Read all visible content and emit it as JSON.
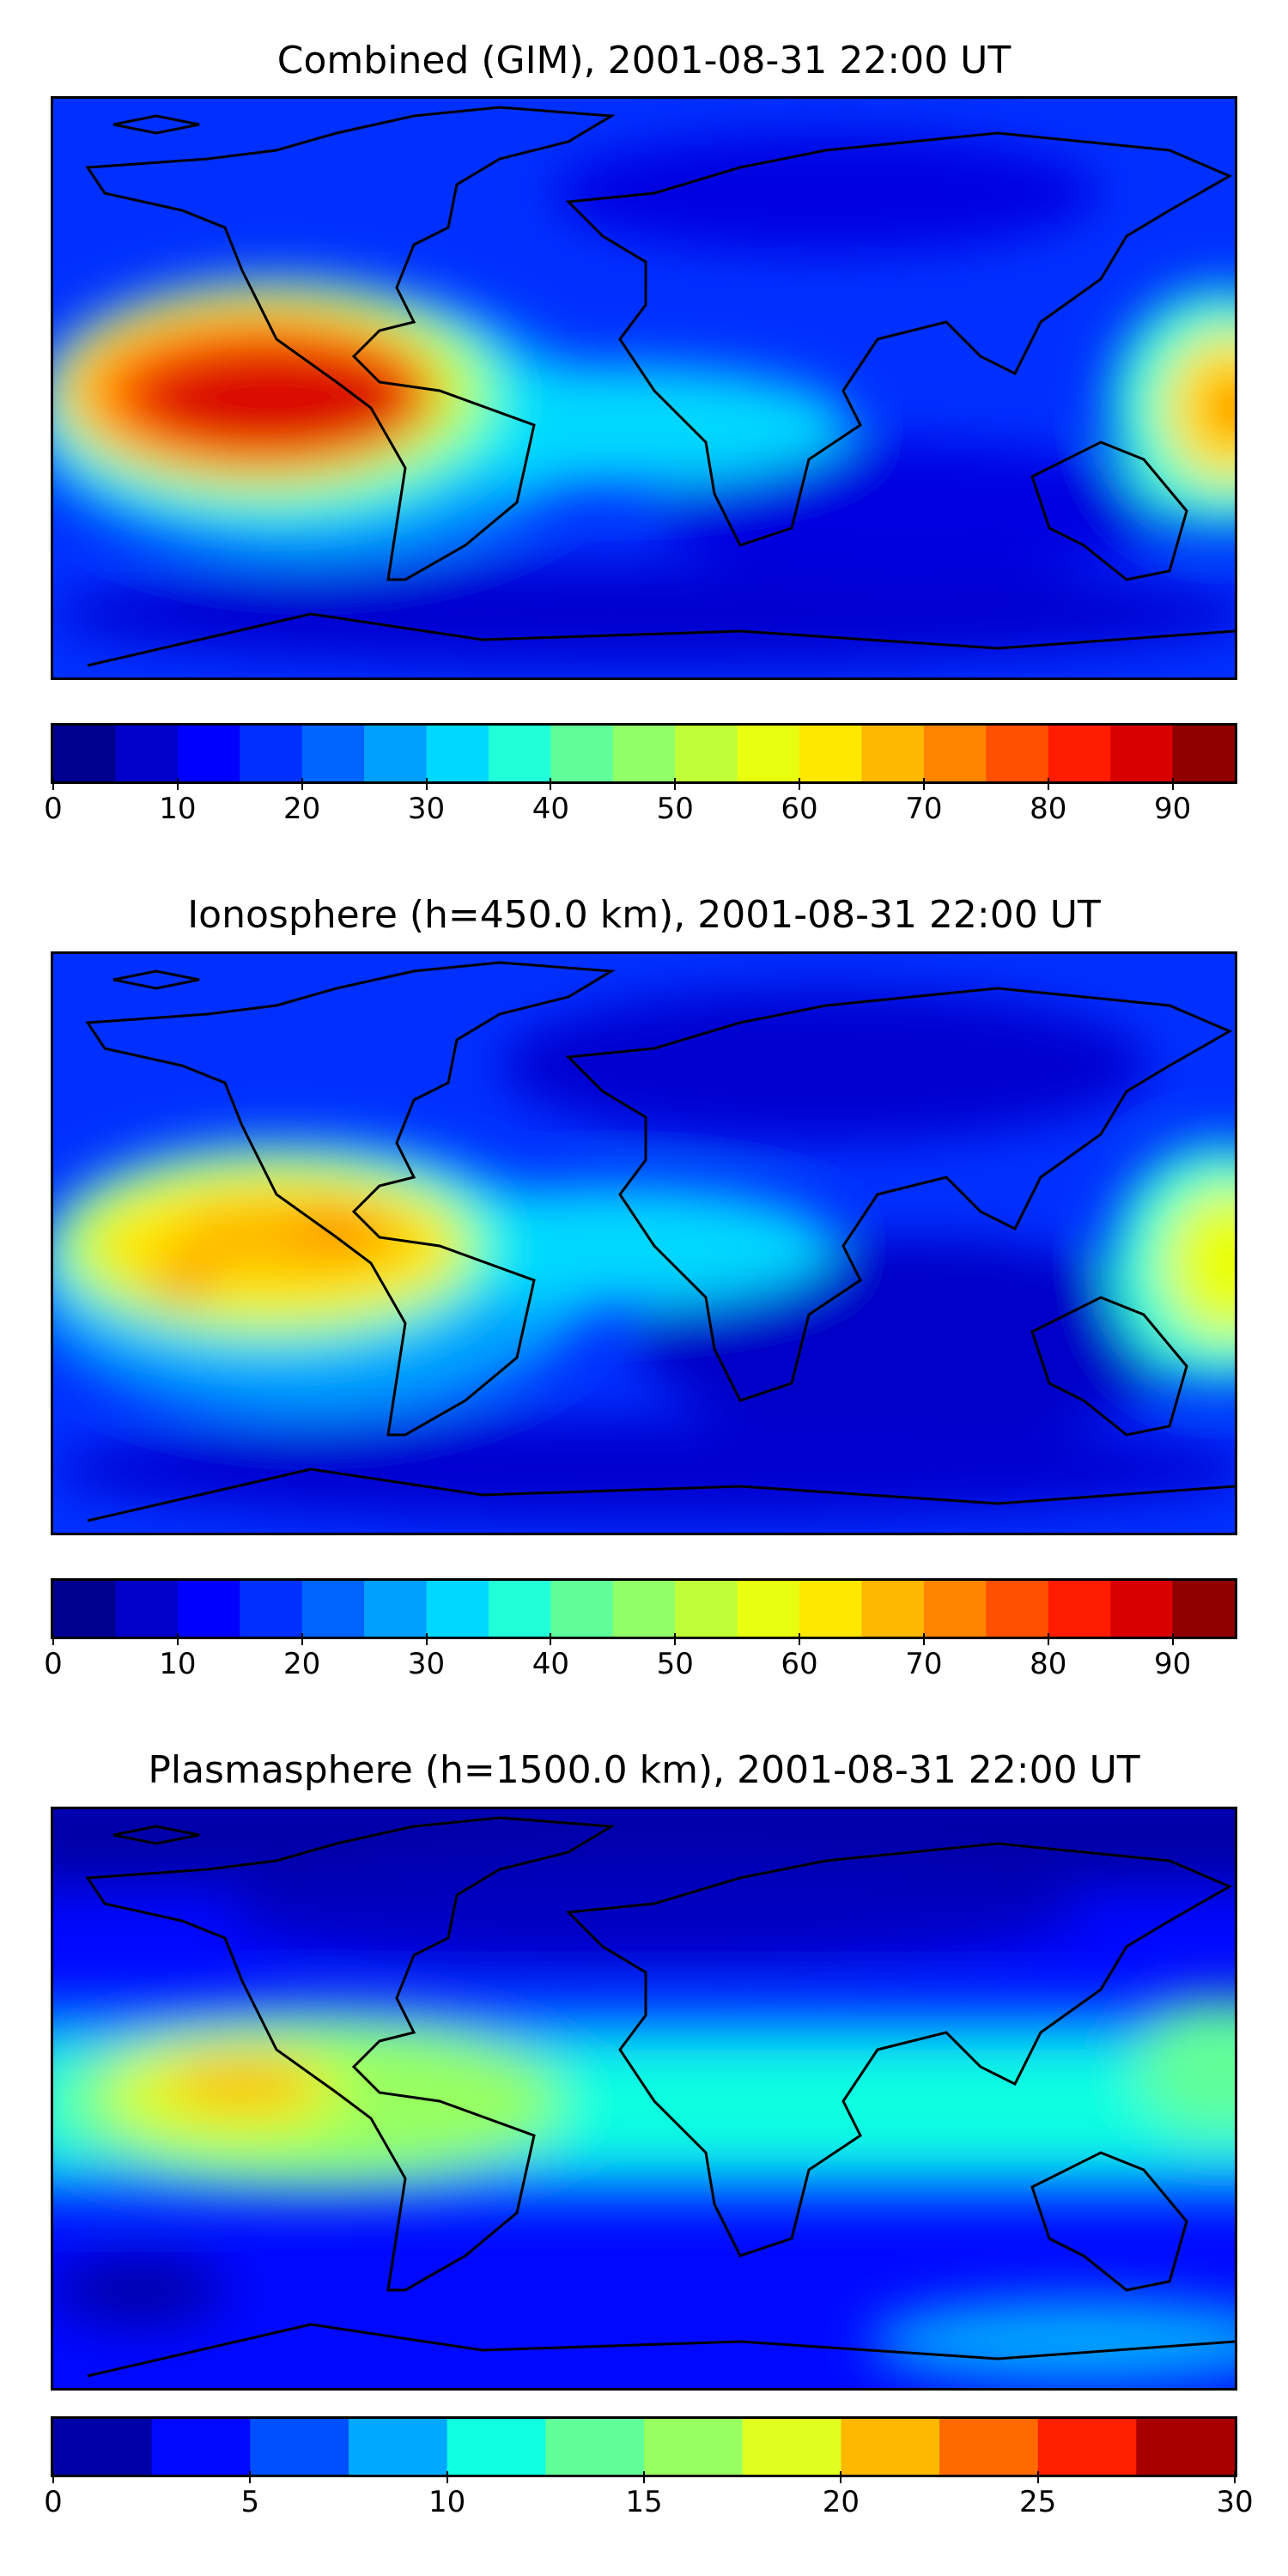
{
  "panels": [
    {
      "title": "Combined (GIM), 2001-08-31 22:00 UT",
      "colorbar": {
        "colors": [
          "#00008f",
          "#0000c8",
          "#0000ff",
          "#0030ff",
          "#0064ff",
          "#00a0ff",
          "#00d8ff",
          "#20ffd8",
          "#60ff9a",
          "#90ff68",
          "#c0ff38",
          "#e8ff10",
          "#ffe800",
          "#ffb800",
          "#ff8400",
          "#ff5000",
          "#ff1c00",
          "#d80000",
          "#900000"
        ],
        "ticks": [
          "0",
          "10",
          "20",
          "30",
          "40",
          "50",
          "60",
          "70",
          "80",
          "90"
        ],
        "tick_values": [
          0,
          10,
          20,
          30,
          40,
          50,
          60,
          70,
          80,
          90
        ],
        "vmin": 0,
        "vmax": 95
      }
    },
    {
      "title": "Ionosphere  (h=450.0 km), 2001-08-31 22:00 UT",
      "colorbar": {
        "colors": [
          "#00008f",
          "#0000c8",
          "#0000ff",
          "#0030ff",
          "#0064ff",
          "#00a0ff",
          "#00d8ff",
          "#20ffd8",
          "#60ff9a",
          "#90ff68",
          "#c0ff38",
          "#e8ff10",
          "#ffe800",
          "#ffb800",
          "#ff8400",
          "#ff5000",
          "#ff1c00",
          "#d80000",
          "#900000"
        ],
        "ticks": [
          "0",
          "10",
          "20",
          "30",
          "40",
          "50",
          "60",
          "70",
          "80",
          "90"
        ],
        "tick_values": [
          0,
          10,
          20,
          30,
          40,
          50,
          60,
          70,
          80,
          90
        ],
        "vmin": 0,
        "vmax": 95
      }
    },
    {
      "title": "Plasmasphere (h=1500.0 km), 2001-08-31 22:00 UT",
      "colorbar": {
        "colors": [
          "#0000a8",
          "#0008ff",
          "#0050ff",
          "#00a8ff",
          "#10ffe0",
          "#60ff9a",
          "#98ff60",
          "#e0ff20",
          "#ffb800",
          "#ff6a00",
          "#ff2000",
          "#a80000"
        ],
        "ticks": [
          "0",
          "5",
          "10",
          "15",
          "20",
          "25",
          "30"
        ],
        "tick_values": [
          0,
          5,
          10,
          15,
          20,
          25,
          30
        ],
        "vmin": 0,
        "vmax": 30
      }
    }
  ]
}
